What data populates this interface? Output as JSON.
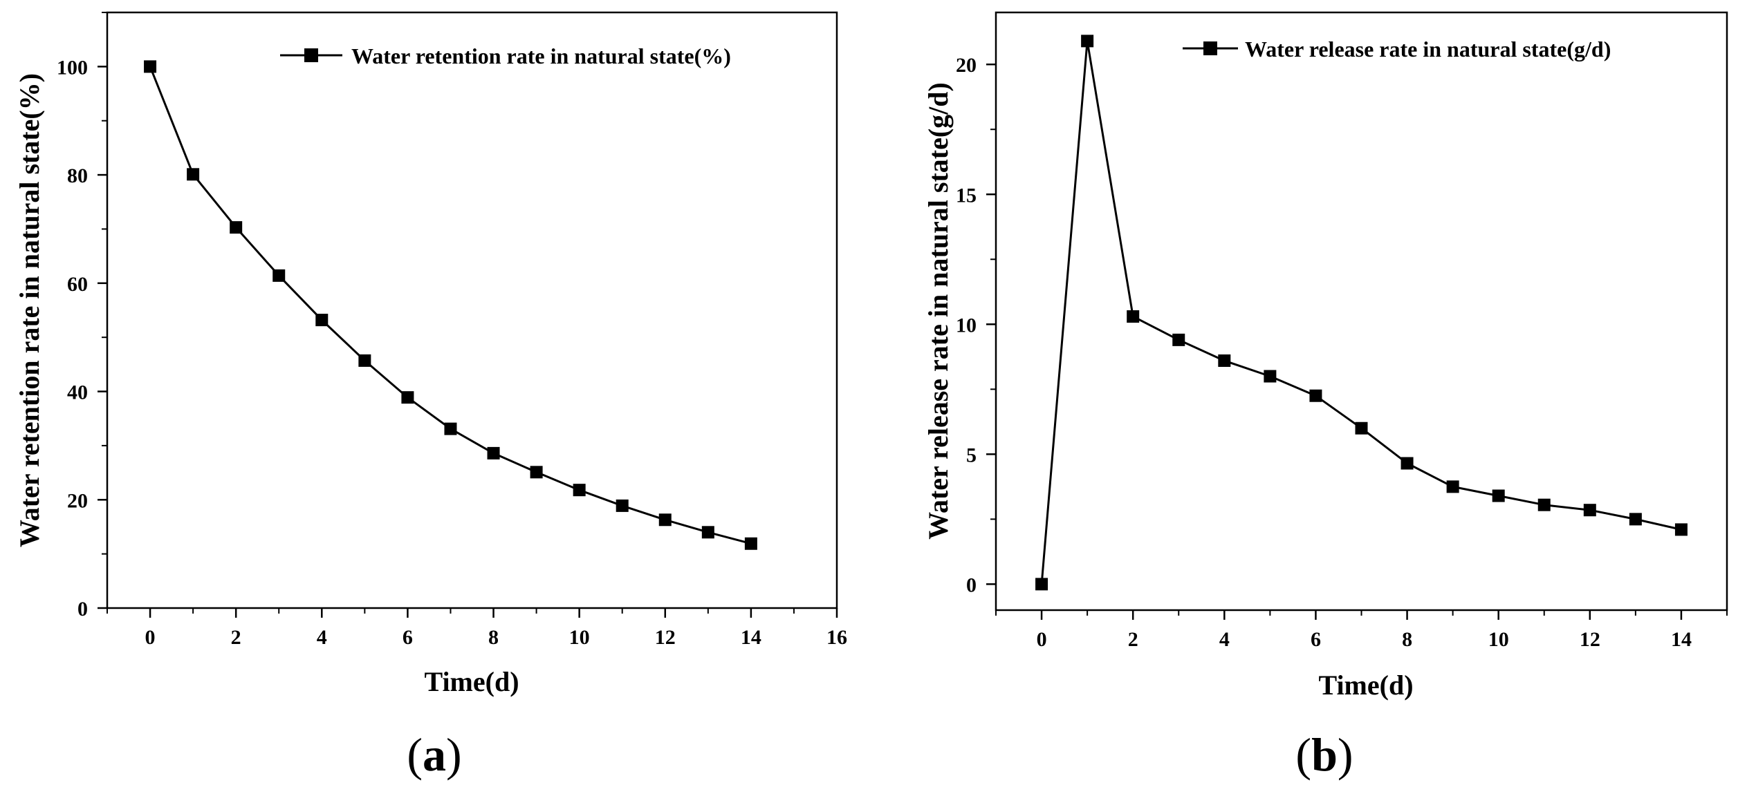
{
  "chart_data": [
    {
      "id": "a",
      "type": "line",
      "panel_label": {
        "open": "(",
        "letter": "a",
        "close": ")"
      },
      "xlabel": "Time(d)",
      "ylabel": "Water retention rate in natural state(%)",
      "xlim": [
        -1,
        16
      ],
      "ylim": [
        0,
        110
      ],
      "xticks": [
        0,
        2,
        4,
        6,
        8,
        10,
        12,
        14,
        16
      ],
      "yticks": [
        0,
        20,
        40,
        60,
        80,
        100
      ],
      "legend_position": "top-right",
      "series": [
        {
          "name": "Water retention rate in natural state(%)",
          "x": [
            0,
            1,
            2,
            3,
            4,
            5,
            6,
            7,
            8,
            9,
            10,
            11,
            12,
            13,
            14
          ],
          "values": [
            100,
            80.1,
            70.3,
            61.4,
            53.2,
            45.7,
            38.9,
            33.1,
            28.6,
            25.1,
            21.8,
            18.9,
            16.3,
            14.0,
            11.9
          ]
        }
      ],
      "colors": {
        "line": "#000000",
        "marker": "#000000",
        "axis": "#000000"
      }
    },
    {
      "id": "b",
      "type": "line",
      "panel_label": {
        "open": "(",
        "letter": "b",
        "close": ")"
      },
      "xlabel": "Time(d)",
      "ylabel": "Water release rate in natural state(g/d)",
      "xlim": [
        -1,
        15
      ],
      "ylim": [
        -1,
        22
      ],
      "xticks": [
        0,
        2,
        4,
        6,
        8,
        10,
        12,
        14
      ],
      "yticks": [
        0,
        5,
        10,
        15,
        20
      ],
      "legend_position": "top-right",
      "series": [
        {
          "name": "Water release rate in natural state(g/d)",
          "x": [
            0,
            1,
            2,
            3,
            4,
            5,
            6,
            7,
            8,
            9,
            10,
            11,
            12,
            13,
            14
          ],
          "values": [
            0,
            20.9,
            10.3,
            9.4,
            8.6,
            8.0,
            7.25,
            6.0,
            4.65,
            3.75,
            3.4,
            3.05,
            2.85,
            2.5,
            2.1
          ]
        }
      ],
      "colors": {
        "line": "#000000",
        "marker": "#000000",
        "axis": "#000000"
      }
    }
  ]
}
